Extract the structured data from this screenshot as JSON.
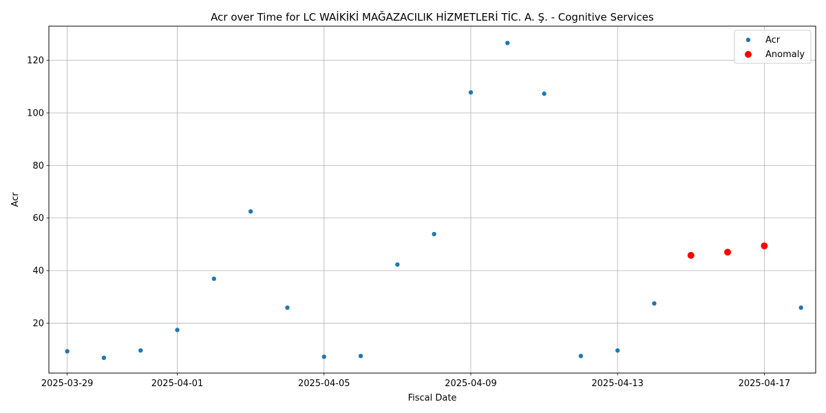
{
  "chart_data": {
    "type": "scatter",
    "title": "Acr over Time for LC WAİKİKİ MAĞAZACILIK HİZMETLERİ TİC. A. Ş. - Cognitive Services",
    "xlabel": "Fiscal Date",
    "ylabel": "Acr",
    "xlim": [
      "2025-03-28",
      "2025-04-18"
    ],
    "ylim": [
      1.0,
      133.0
    ],
    "x_ticks": [
      "2025-03-29",
      "2025-04-01",
      "2025-04-05",
      "2025-04-09",
      "2025-04-13",
      "2025-04-17"
    ],
    "y_ticks": [
      20,
      40,
      60,
      80,
      100,
      120
    ],
    "grid": true,
    "legend_position": "top-right",
    "series": [
      {
        "name": "Acr",
        "color": "#1f77b4",
        "points": [
          {
            "x": "2025-03-29",
            "y": 9.3
          },
          {
            "x": "2025-03-30",
            "y": 6.8
          },
          {
            "x": "2025-03-31",
            "y": 9.6
          },
          {
            "x": "2025-04-01",
            "y": 17.4
          },
          {
            "x": "2025-04-02",
            "y": 36.9
          },
          {
            "x": "2025-04-03",
            "y": 62.5
          },
          {
            "x": "2025-04-04",
            "y": 25.9
          },
          {
            "x": "2025-04-05",
            "y": 7.2
          },
          {
            "x": "2025-04-06",
            "y": 7.5
          },
          {
            "x": "2025-04-07",
            "y": 42.3
          },
          {
            "x": "2025-04-08",
            "y": 53.9
          },
          {
            "x": "2025-04-09",
            "y": 107.8
          },
          {
            "x": "2025-04-10",
            "y": 126.6
          },
          {
            "x": "2025-04-11",
            "y": 107.3
          },
          {
            "x": "2025-04-12",
            "y": 7.5
          },
          {
            "x": "2025-04-13",
            "y": 9.6
          },
          {
            "x": "2025-04-14",
            "y": 27.5
          },
          {
            "x": "2025-04-15",
            "y": 45.8
          },
          {
            "x": "2025-04-16",
            "y": 47.0
          },
          {
            "x": "2025-04-17",
            "y": 49.4
          },
          {
            "x": "2025-04-18",
            "y": 25.9
          }
        ]
      },
      {
        "name": "Anomaly",
        "color": "#ff0000",
        "points": [
          {
            "x": "2025-04-15",
            "y": 45.8
          },
          {
            "x": "2025-04-16",
            "y": 47.0
          },
          {
            "x": "2025-04-17",
            "y": 49.4
          }
        ]
      }
    ]
  }
}
